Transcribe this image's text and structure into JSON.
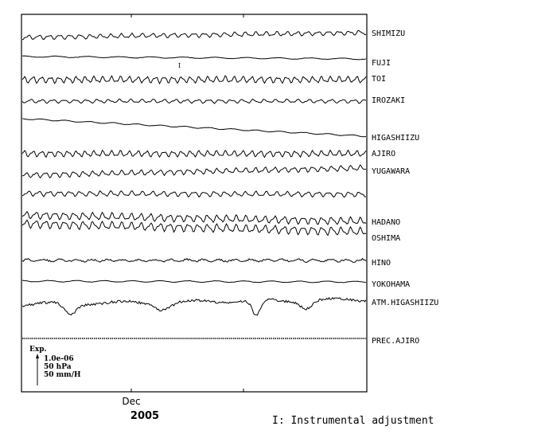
{
  "chart_data": {
    "type": "line",
    "title": "",
    "xlabel": "",
    "ylabel": "",
    "x_tick_labels": [
      "Dec"
    ],
    "x_year_label": "2005",
    "grid": false,
    "series": [
      {
        "name": "SHIMIZU",
        "pattern": "tidal",
        "amplitude": 2.2,
        "drift": -6,
        "wavelength": 13,
        "color": "#000000"
      },
      {
        "name": "FUJI",
        "pattern": "smooth",
        "amplitude": 0.8,
        "drift": 3,
        "wavelength": 40,
        "color": "#000000",
        "annotation": "I"
      },
      {
        "name": "TOI",
        "pattern": "tidal",
        "amplitude": 3.2,
        "drift": 0,
        "wavelength": 11,
        "color": "#000000"
      },
      {
        "name": "IROZAKI",
        "pattern": "tidal",
        "amplitude": 1.8,
        "drift": 0,
        "wavelength": 14,
        "color": "#000000"
      },
      {
        "name": "HIGASHIIZU",
        "pattern": "trend",
        "amplitude": 0.8,
        "drift": 22,
        "wavelength": 30,
        "color": "#000000"
      },
      {
        "name": "AJIRO",
        "pattern": "tidal",
        "amplitude": 3.0,
        "drift": 0,
        "wavelength": 11,
        "color": "#000000"
      },
      {
        "name": "YUGAWARA",
        "pattern": "tidal",
        "amplitude": 2.6,
        "drift": -9,
        "wavelength": 12,
        "color": "#000000"
      },
      {
        "name": "",
        "pattern": "tidal",
        "amplitude": 2.5,
        "drift": 1,
        "wavelength": 13,
        "color": "#000000"
      },
      {
        "name": "HADANO",
        "pattern": "tidal",
        "amplitude": 3.6,
        "drift": 8,
        "wavelength": 12,
        "color": "#000000"
      },
      {
        "name": "OSHIMA",
        "pattern": "tidal",
        "amplitude": 4.0,
        "drift": 10,
        "wavelength": 12,
        "color": "#000000"
      },
      {
        "name": "HINO",
        "pattern": "noisy",
        "amplitude": 1.4,
        "drift": 0,
        "wavelength": 20,
        "color": "#000000"
      },
      {
        "name": "YOKOHAMA",
        "pattern": "smooth",
        "amplitude": 0.9,
        "drift": 1,
        "wavelength": 35,
        "color": "#000000"
      },
      {
        "name": "ATM.HIGASHIIZU",
        "pattern": "pressure",
        "amplitude": 4,
        "drift": 0,
        "wavelength": 25,
        "color": "#000000"
      },
      {
        "name": "PREC.AJIRO",
        "pattern": "flat",
        "amplitude": 0,
        "drift": 0,
        "wavelength": 1,
        "color": "#000000"
      }
    ],
    "scale_legend": {
      "title": "Exp.",
      "lines": [
        "1.0e-06",
        "50 hPa",
        "50 mm/H"
      ]
    },
    "footnote": "I: Instrumental adjustment"
  }
}
